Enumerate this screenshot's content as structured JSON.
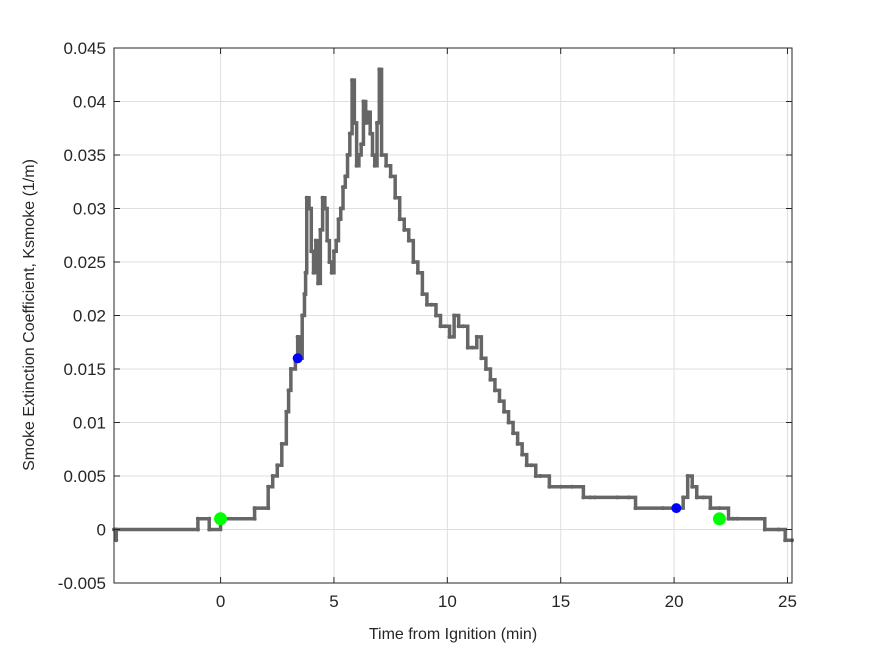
{
  "chart_data": {
    "type": "line",
    "title": "",
    "xlabel": "Time from Ignition (min)",
    "ylabel": "Smoke Extinction Coefficient, Ksmoke (1/m)",
    "xlim": [
      -4.7,
      25.2
    ],
    "ylim": [
      -0.005,
      0.045
    ],
    "grid": true,
    "legend": null,
    "xticks": [
      0,
      5,
      10,
      15,
      20,
      25
    ],
    "xtick_labels": [
      "0",
      "5",
      "10",
      "15",
      "20",
      "25"
    ],
    "yticks": [
      -0.005,
      0,
      0.005,
      0.01,
      0.015,
      0.02,
      0.025,
      0.03,
      0.035,
      0.04,
      0.045
    ],
    "ytick_labels": [
      "-0.005",
      "0",
      "0.005",
      "0.01",
      "0.015",
      "0.02",
      "0.025",
      "0.03",
      "0.035",
      "0.04",
      "0.045"
    ],
    "series": [
      {
        "name": "Ksmoke",
        "color": "#666666",
        "style": "stairs-with-markers",
        "x": [
          -4.7,
          -4.6,
          -4.6,
          -1.0,
          -1.0,
          -0.5,
          -0.5,
          0.0,
          1.5,
          1.5,
          2.1,
          2.1,
          2.3,
          2.5,
          2.7,
          2.9,
          3.0,
          3.1,
          3.3,
          3.4,
          3.5,
          3.6,
          3.7,
          3.75,
          3.8,
          3.9,
          4.0,
          4.1,
          4.2,
          4.3,
          4.4,
          4.5,
          4.6,
          4.7,
          4.8,
          4.9,
          5.0,
          5.1,
          5.2,
          5.3,
          5.4,
          5.5,
          5.6,
          5.7,
          5.8,
          5.9,
          6.0,
          6.1,
          6.2,
          6.3,
          6.4,
          6.5,
          6.6,
          6.7,
          6.8,
          6.9,
          7.0,
          7.1,
          7.3,
          7.5,
          7.7,
          7.9,
          8.1,
          8.3,
          8.5,
          8.7,
          8.9,
          9.1,
          9.3,
          9.5,
          9.7,
          9.9,
          10.1,
          10.3,
          10.5,
          10.7,
          10.9,
          11.1,
          11.3,
          11.5,
          11.7,
          11.9,
          12.1,
          12.3,
          12.5,
          12.7,
          12.9,
          13.1,
          13.3,
          13.5,
          13.7,
          13.9,
          14.1,
          14.5,
          15.0,
          15.5,
          16.0,
          16.3,
          16.5,
          17.5,
          18.0,
          18.3,
          19.5,
          20.0,
          20.2,
          20.4,
          20.6,
          20.8,
          21.0,
          21.3,
          21.6,
          22.0,
          22.4,
          22.6,
          22.8,
          24.0,
          24.6,
          24.9,
          25.2
        ],
        "y": [
          0.0,
          -0.001,
          0.0,
          0.0,
          0.001,
          0.001,
          0.0,
          0.001,
          0.001,
          0.002,
          0.002,
          0.004,
          0.005,
          0.006,
          0.008,
          0.011,
          0.013,
          0.015,
          0.016,
          0.018,
          0.016,
          0.02,
          0.022,
          0.024,
          0.031,
          0.03,
          0.026,
          0.024,
          0.027,
          0.023,
          0.028,
          0.031,
          0.03,
          0.027,
          0.025,
          0.024,
          0.026,
          0.027,
          0.029,
          0.03,
          0.032,
          0.033,
          0.035,
          0.037,
          0.042,
          0.038,
          0.034,
          0.035,
          0.036,
          0.04,
          0.038,
          0.039,
          0.037,
          0.035,
          0.034,
          0.038,
          0.043,
          0.035,
          0.034,
          0.033,
          0.031,
          0.029,
          0.028,
          0.027,
          0.025,
          0.024,
          0.022,
          0.021,
          0.021,
          0.02,
          0.019,
          0.019,
          0.018,
          0.02,
          0.019,
          0.019,
          0.017,
          0.017,
          0.018,
          0.016,
          0.015,
          0.014,
          0.013,
          0.012,
          0.011,
          0.01,
          0.009,
          0.008,
          0.007,
          0.006,
          0.006,
          0.005,
          0.005,
          0.004,
          0.004,
          0.004,
          0.003,
          0.003,
          0.003,
          0.003,
          0.003,
          0.002,
          0.002,
          0.002,
          0.002,
          0.003,
          0.005,
          0.004,
          0.003,
          0.003,
          0.002,
          0.002,
          0.001,
          0.001,
          0.001,
          0.0,
          0.0,
          -0.001,
          -0.001
        ]
      },
      {
        "name": "blue-markers",
        "color": "#0000ff",
        "style": "markers",
        "x": [
          3.4,
          20.1
        ],
        "y": [
          0.016,
          0.002
        ]
      },
      {
        "name": "green-markers",
        "color": "#00ff00",
        "style": "markers",
        "x": [
          0.0,
          22.0
        ],
        "y": [
          0.001,
          0.001
        ]
      }
    ]
  }
}
